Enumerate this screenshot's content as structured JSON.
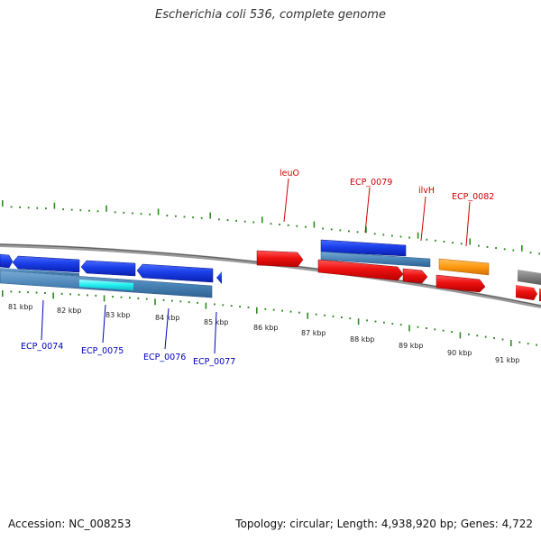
{
  "title": "Escherichia coli 536, complete genome",
  "footer": {
    "accession_label": "Accession:",
    "accession": "NC_008253",
    "topology_label": "Topology:",
    "topology": "circular",
    "length_label": "Length:",
    "length": "4,938,920 bp",
    "genes_label": "Genes:",
    "genes": "4,722"
  },
  "colors": {
    "forward_gene": "#ee1111",
    "reverse_gene": "#1a3ee8",
    "gene_region": "#4b86b8",
    "highlight_region": "#22f0f0",
    "orange_feature": "#ff9a10",
    "backbone": "#888888",
    "tick_dots": "#2f8a22",
    "forward_label": "#cc0000",
    "reverse_label": "#0000bb"
  },
  "kbp_labels": [
    "81 kbp",
    "82 kbp",
    "83 kbp",
    "84 kbp",
    "85 kbp",
    "86 kbp",
    "87 kbp",
    "88 kbp",
    "89 kbp",
    "90 kbp",
    "91 kbp"
  ],
  "forward_callouts": [
    "leuO",
    "ECP_0079",
    "ilvH",
    "ECP_0082"
  ],
  "reverse_callouts": [
    "ECP_0074",
    "ECP_0075",
    "ECP_0076",
    "ECP_0077"
  ]
}
